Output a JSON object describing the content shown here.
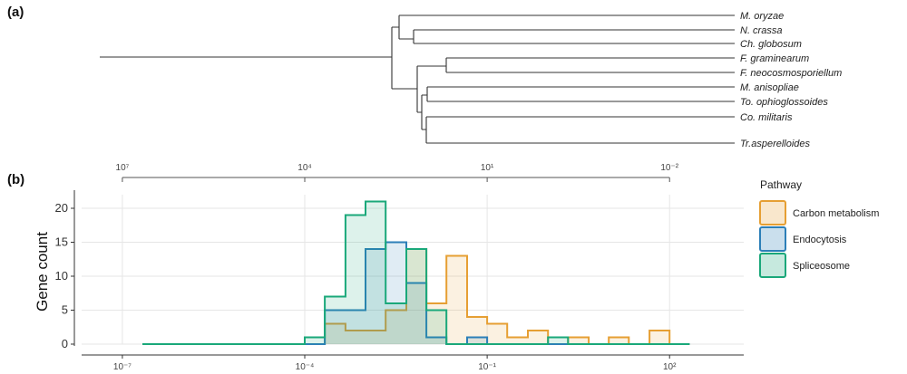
{
  "panels": {
    "a": "(a)",
    "b": "(b)"
  },
  "tree": {
    "taxa": [
      "M. oryzae",
      "N. crassa",
      "Ch. globosum",
      "F. graminearum",
      "F. neocosmosporiellum",
      "M. anisopliae",
      "To. ophioglossoides",
      "Co. militaris",
      "Tr.asperelloides"
    ]
  },
  "chart_data": {
    "type": "histogram",
    "title": "",
    "xlabel": "",
    "ylabel": "Gene count",
    "x_scale": "log10",
    "x_ticks_bottom": [
      {
        "value": -7,
        "label": "10⁻⁷"
      },
      {
        "value": -4,
        "label": "10⁻⁴"
      },
      {
        "value": -1,
        "label": "10⁻¹"
      },
      {
        "value": 2,
        "label": "10²"
      }
    ],
    "x_ticks_top": [
      {
        "value": -7,
        "label": "10⁷"
      },
      {
        "value": -4,
        "label": "10⁴"
      },
      {
        "value": -1,
        "label": "10¹"
      },
      {
        "value": 2,
        "label": "10⁻²"
      }
    ],
    "ylim": [
      0,
      22
    ],
    "y_ticks": [
      0,
      5,
      10,
      15,
      20
    ],
    "bin_edges": [
      -6.67,
      -6.33,
      -6.0,
      -5.67,
      -5.33,
      -5.0,
      -4.67,
      -4.33,
      -4.0,
      -3.67,
      -3.33,
      -3.0,
      -2.67,
      -2.33,
      -2.0,
      -1.67,
      -1.33,
      -1.0,
      -0.67,
      -0.33,
      0.0,
      0.33,
      0.67,
      1.0,
      1.33,
      1.67,
      2.0,
      2.33
    ],
    "series": [
      {
        "name": "Carbon metabolism",
        "color": "#e69f33",
        "counts": [
          0,
          0,
          0,
          0,
          0,
          0,
          0,
          0,
          0,
          3,
          2,
          2,
          5,
          14,
          6,
          13,
          4,
          3,
          1,
          2,
          0,
          1,
          0,
          1,
          0,
          2,
          0
        ]
      },
      {
        "name": "Endocytosis",
        "color": "#2c7fb8",
        "counts": [
          0,
          0,
          0,
          0,
          0,
          0,
          0,
          0,
          0,
          5,
          5,
          14,
          15,
          9,
          1,
          0,
          1,
          0,
          0,
          0,
          0,
          0,
          0,
          0,
          0,
          0,
          0
        ]
      },
      {
        "name": "Spliceosome",
        "color": "#1aa87a",
        "counts": [
          0,
          0,
          0,
          0,
          0,
          0,
          0,
          0,
          1,
          7,
          19,
          21,
          6,
          14,
          5,
          0,
          0,
          0,
          0,
          0,
          1,
          0,
          0,
          0,
          0,
          0,
          0
        ]
      }
    ],
    "legend": {
      "title": "Pathway",
      "position": "right"
    }
  }
}
